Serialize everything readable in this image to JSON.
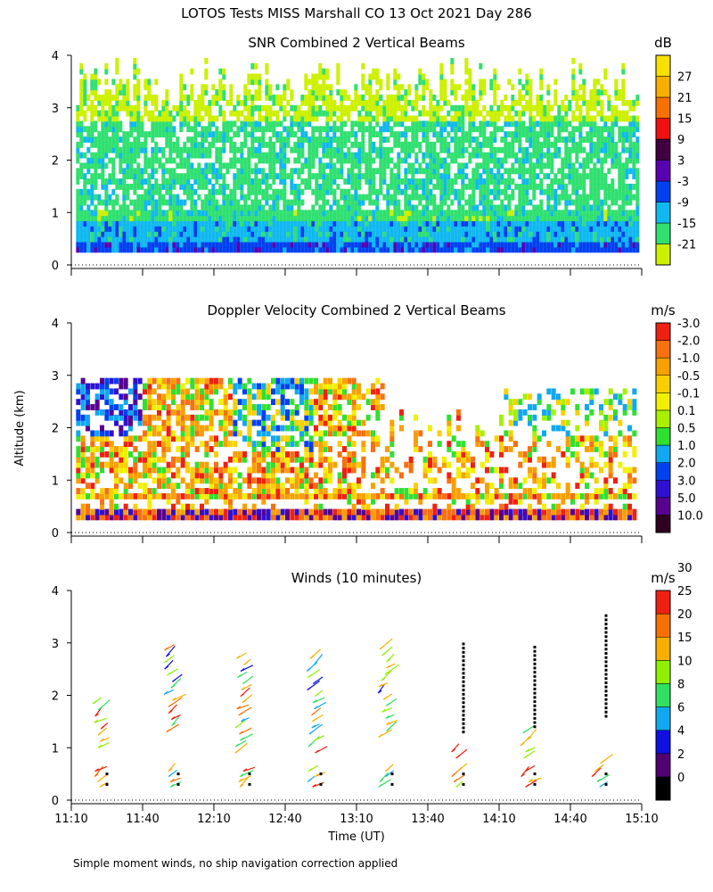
{
  "title": "LOTOS Tests MISS Marshall CO  13 Oct 2021 Day 286",
  "footnote": "Simple moment winds, no ship navigation correction applied",
  "y_axis_label": "Altitude (km)",
  "x_axis_label": "Time (UT)",
  "chart_data": [
    {
      "id": "snr",
      "type": "heatmap",
      "title": "SNR Combined 2 Vertical Beams",
      "unit": "dB",
      "xlabel": "",
      "ylabel": "Altitude (km)",
      "xlim": [
        0,
        240
      ],
      "ylim": [
        0,
        4
      ],
      "yticks": [
        0,
        1,
        2,
        3,
        4
      ],
      "colorbar": {
        "labels": [
          "-21",
          "-15",
          "-9",
          "-3",
          "3",
          "9",
          "15",
          "21",
          "27"
        ],
        "colors": [
          "#ccf000",
          "#30e070",
          "#10b8f0",
          "#0040f0",
          "#5800b0",
          "#400040",
          "#f01010",
          "#f87000",
          "#f8b000",
          "#f8e000"
        ]
      },
      "profile": [
        {
          "alt": 0.1,
          "level": 3
        },
        {
          "alt": 0.3,
          "level": 3
        },
        {
          "alt": 0.5,
          "level": 2
        },
        {
          "alt": 0.7,
          "level": 2
        },
        {
          "alt": 0.9,
          "level": 1
        },
        {
          "alt": 1.2,
          "level": 1
        },
        {
          "alt": 1.5,
          "level": 1
        },
        {
          "alt": 1.8,
          "level": 1
        },
        {
          "alt": 2.2,
          "level": 1
        },
        {
          "alt": 2.5,
          "level": 1
        },
        {
          "alt": 2.9,
          "level": 0
        },
        {
          "alt": 3.3,
          "level": 0
        },
        {
          "alt": 3.7,
          "level": 0
        }
      ]
    },
    {
      "id": "doppler",
      "type": "heatmap",
      "title": "Doppler Velocity Combined 2 Vertical Beams",
      "unit": "m/s",
      "xlabel": "",
      "ylabel": "Altitude (km)",
      "xlim": [
        0,
        240
      ],
      "ylim": [
        0,
        4
      ],
      "yticks": [
        0,
        1,
        2,
        3,
        4
      ],
      "colorbar": {
        "labels": [
          "10.0",
          "5.0",
          "3.0",
          "2.0",
          "1.0",
          "0.5",
          "0.1",
          "-0.1",
          "-0.5",
          "-1.0",
          "-2.0",
          "-3.0"
        ],
        "colors": [
          "#300020",
          "#580090",
          "#3010d0",
          "#0040f0",
          "#10a8f0",
          "#30e030",
          "#a8f000",
          "#f0f000",
          "#f8d000",
          "#f8a000",
          "#f87010",
          "#f02010"
        ]
      },
      "profile": [
        {
          "alt": 0.3,
          "level": 10
        },
        {
          "alt": 0.6,
          "level": 9
        },
        {
          "alt": 1.0,
          "level": 8
        },
        {
          "alt": 1.5,
          "level": 9
        },
        {
          "alt": 2.0,
          "level": 8
        },
        {
          "alt": 2.5,
          "level": 5
        },
        {
          "alt": 3.0,
          "level": 3
        }
      ]
    },
    {
      "id": "winds",
      "type": "scatter",
      "title": "Winds (10 minutes)",
      "unit": "m/s",
      "xlabel": "Time (UT)",
      "ylabel": "Altitude (km)",
      "xlim": [
        0,
        240
      ],
      "ylim": [
        0,
        4
      ],
      "yticks": [
        0,
        1,
        2,
        3,
        4
      ],
      "xticks": [
        "11:10",
        "11:40",
        "12:10",
        "12:40",
        "13:10",
        "13:40",
        "14:10",
        "14:40",
        "15:10"
      ],
      "colorbar": {
        "labels": [
          "0",
          "2",
          "4",
          "6",
          "8",
          "10",
          "15",
          "20",
          "25",
          "30"
        ],
        "colors": [
          "#000000",
          "#500070",
          "#1010e0",
          "#10a8f0",
          "#30e060",
          "#90f000",
          "#f8b000",
          "#f87000",
          "#f02010"
        ]
      },
      "profile_times_min": [
        15,
        45,
        75,
        105,
        135,
        165,
        195,
        225
      ],
      "missing_marker_spans_km": [
        {
          "time_min": 165,
          "from": 1.3,
          "to": 3.0
        },
        {
          "time_min": 195,
          "from": 1.4,
          "to": 3.0
        },
        {
          "time_min": 225,
          "from": 1.6,
          "to": 3.6
        }
      ]
    }
  ]
}
